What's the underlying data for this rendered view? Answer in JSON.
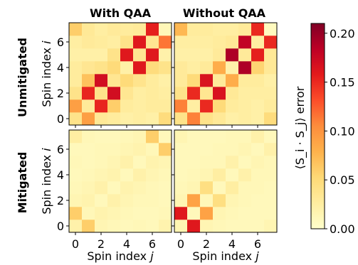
{
  "chart_data": {
    "type": "heatmap",
    "rows": [
      {
        "label": "Unmitigated"
      },
      {
        "label": "Mitigated"
      }
    ],
    "columns": [
      {
        "title": "With QAA"
      },
      {
        "title": "Without QAA"
      }
    ],
    "ylabel": "Spin index i",
    "xlabel": "Spin index j",
    "ticks": [
      0,
      2,
      4,
      6
    ],
    "x_ticks": [
      "0",
      "2",
      "4",
      "6"
    ],
    "y_ticks": [
      "0",
      "2",
      "4",
      "6"
    ],
    "colorbar": {
      "label": "⟨S_i · S_j⟩ error",
      "range": [
        0,
        0.21
      ],
      "ticks": [
        "0.00",
        "0.05",
        "0.10",
        "0.15",
        "0.20"
      ],
      "tick_values": [
        0,
        0.05,
        0.1,
        0.15,
        0.2
      ],
      "colormap": "YlOrRd",
      "stops": [
        "#ffffcc",
        "#ffeda0",
        "#fed976",
        "#feb24c",
        "#fd8d3c",
        "#fc4e2a",
        "#e31a1c",
        "#bd0026",
        "#800026"
      ]
    },
    "panels": [
      {
        "row": "Unmitigated",
        "column": "With QAA",
        "values": [
          [
            0.04,
            0.092,
            0.032,
            0.028,
            0.022,
            0.025,
            0.022,
            0.048
          ],
          [
            0.092,
            0.03,
            0.152,
            0.06,
            0.028,
            0.025,
            0.028,
            0.028
          ],
          [
            0.04,
            0.152,
            0.04,
            0.17,
            0.035,
            0.025,
            0.028,
            0.025
          ],
          [
            0.028,
            0.068,
            0.17,
            0.035,
            0.05,
            0.038,
            0.028,
            0.022
          ],
          [
            0.028,
            0.035,
            0.04,
            0.05,
            0.022,
            0.16,
            0.048,
            0.04
          ],
          [
            0.022,
            0.022,
            0.022,
            0.04,
            0.16,
            0.035,
            0.16,
            0.02
          ],
          [
            0.025,
            0.03,
            0.028,
            0.025,
            0.04,
            0.16,
            0.035,
            0.115
          ],
          [
            0.06,
            0.032,
            0.025,
            0.03,
            0.028,
            0.03,
            0.155,
            0.012
          ]
        ]
      },
      {
        "row": "Unmitigated",
        "column": "Without QAA",
        "values": [
          [
            0.04,
            0.11,
            0.04,
            0.032,
            0.022,
            0.025,
            0.022,
            0.048
          ],
          [
            0.11,
            0.025,
            0.15,
            0.05,
            0.028,
            0.025,
            0.022,
            0.028
          ],
          [
            0.04,
            0.15,
            0.035,
            0.165,
            0.032,
            0.025,
            0.025,
            0.025
          ],
          [
            0.03,
            0.05,
            0.165,
            0.03,
            0.082,
            0.028,
            0.028,
            0.022
          ],
          [
            0.03,
            0.025,
            0.03,
            0.082,
            0.02,
            0.19,
            0.055,
            0.032
          ],
          [
            0.022,
            0.022,
            0.022,
            0.03,
            0.19,
            0.03,
            0.155,
            0.032
          ],
          [
            0.025,
            0.025,
            0.025,
            0.028,
            0.032,
            0.18,
            0.025,
            0.15
          ],
          [
            0.075,
            0.028,
            0.028,
            0.025,
            0.025,
            0.03,
            0.15,
            0.008
          ]
        ]
      },
      {
        "row": "Mitigated",
        "column": "With QAA",
        "values": [
          [
            0.02,
            0.06,
            0.015,
            0.012,
            0.01,
            0.012,
            0.01,
            0.018
          ],
          [
            0.06,
            0.012,
            0.018,
            0.015,
            0.012,
            0.01,
            0.01,
            0.012
          ],
          [
            0.015,
            0.018,
            0.01,
            0.02,
            0.015,
            0.012,
            0.012,
            0.01
          ],
          [
            0.012,
            0.015,
            0.02,
            0.01,
            0.018,
            0.015,
            0.012,
            0.01
          ],
          [
            0.01,
            0.012,
            0.015,
            0.018,
            0.01,
            0.02,
            0.015,
            0.012
          ],
          [
            0.012,
            0.01,
            0.012,
            0.015,
            0.02,
            0.01,
            0.018,
            0.015
          ],
          [
            0.01,
            0.01,
            0.012,
            0.012,
            0.015,
            0.018,
            0.012,
            0.06
          ],
          [
            0.025,
            0.012,
            0.01,
            0.01,
            0.012,
            0.015,
            0.06,
            0.01
          ]
        ]
      },
      {
        "row": "Mitigated",
        "column": "Without QAA",
        "values": [
          [
            0.015,
            0.16,
            0.015,
            0.012,
            0.01,
            0.01,
            0.01,
            0.015
          ],
          [
            0.16,
            0.01,
            0.09,
            0.015,
            0.012,
            0.01,
            0.01,
            0.01
          ],
          [
            0.015,
            0.09,
            0.012,
            0.045,
            0.015,
            0.012,
            0.01,
            0.01
          ],
          [
            0.012,
            0.015,
            0.045,
            0.01,
            0.025,
            0.012,
            0.012,
            0.01
          ],
          [
            0.01,
            0.012,
            0.015,
            0.025,
            0.01,
            0.02,
            0.012,
            0.012
          ],
          [
            0.01,
            0.01,
            0.012,
            0.012,
            0.02,
            0.01,
            0.015,
            0.012
          ],
          [
            0.01,
            0.01,
            0.01,
            0.012,
            0.012,
            0.015,
            0.01,
            0.02
          ],
          [
            0.015,
            0.01,
            0.01,
            0.01,
            0.012,
            0.012,
            0.02,
            0.01
          ]
        ]
      }
    ]
  }
}
